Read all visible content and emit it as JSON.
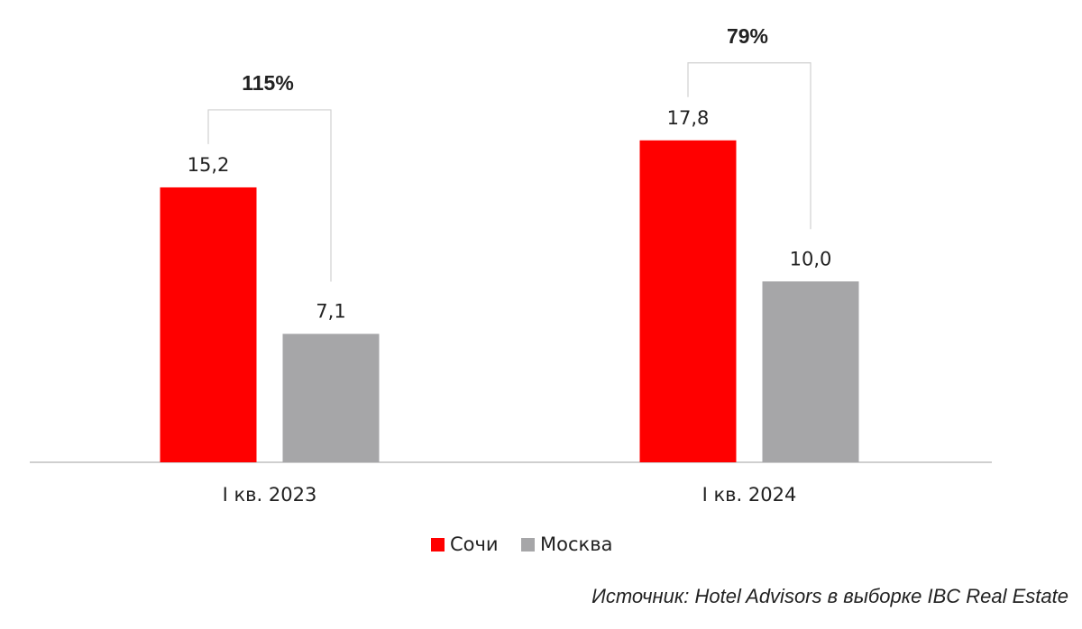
{
  "chart_data": {
    "type": "bar",
    "categories": [
      "I кв. 2023",
      "I кв. 2024"
    ],
    "series": [
      {
        "name": "Сочи",
        "color": "#ff0000",
        "values": [
          15.2,
          17.8
        ],
        "value_labels": [
          "15,2",
          "17,8"
        ]
      },
      {
        "name": "Москва",
        "color": "#a6a6a8",
        "values": [
          7.1,
          10.0
        ],
        "value_labels": [
          "7,1",
          "10,0"
        ]
      }
    ],
    "annotations": [
      "115%",
      "79%"
    ],
    "source": "Источник: Hotel Advisors в выборке IBC Real Estate"
  }
}
